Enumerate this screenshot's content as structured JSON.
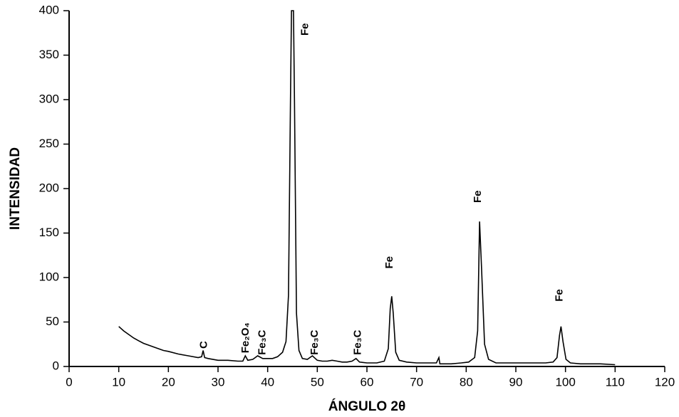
{
  "chart_data": {
    "type": "line",
    "xlabel": "ÁNGULO 2θ",
    "ylabel": "INTENSIDAD",
    "xlim": [
      0,
      120
    ],
    "ylim": [
      0,
      400
    ],
    "xticks": [
      0,
      10,
      20,
      30,
      40,
      50,
      60,
      70,
      80,
      90,
      100,
      110,
      120
    ],
    "yticks": [
      0,
      50,
      100,
      150,
      200,
      250,
      300,
      350,
      400
    ],
    "color": "#000000",
    "x": [
      10,
      11,
      12,
      13,
      14,
      15,
      16,
      17,
      18,
      19,
      20,
      22,
      24,
      26,
      26.7,
      27,
      27.3,
      28,
      30,
      32,
      34,
      35,
      35.5,
      36,
      37,
      38,
      39,
      40,
      41,
      42,
      43,
      43.7,
      44.2,
      44.6,
      44.8,
      45.2,
      45.4,
      45.8,
      46.3,
      47,
      48,
      49,
      50,
      51,
      52,
      53,
      54,
      55,
      56,
      57,
      57.8,
      58.5,
      60,
      62,
      63.5,
      64.3,
      64.7,
      65,
      65.3,
      65.8,
      66.5,
      68,
      70,
      72,
      74,
      74.5,
      74.7,
      75.2,
      77,
      79,
      80.5,
      81.7,
      82.3,
      82.7,
      83.1,
      83.7,
      84.5,
      86,
      88,
      90,
      92,
      94,
      96,
      97.5,
      98.3,
      98.8,
      99.1,
      99.5,
      100.1,
      101,
      103,
      105,
      107,
      110
    ],
    "values": [
      45,
      40,
      36,
      32,
      29,
      26,
      24,
      22,
      20,
      18,
      17,
      14,
      12,
      10,
      11,
      18,
      10,
      9,
      7,
      7,
      6,
      6,
      12,
      7,
      8,
      12,
      9,
      9,
      9,
      11,
      16,
      28,
      80,
      300,
      400,
      400,
      300,
      60,
      18,
      9,
      8,
      12,
      7,
      6,
      6,
      7,
      6,
      5,
      5,
      6,
      9,
      5,
      4,
      4,
      6,
      20,
      65,
      79,
      60,
      16,
      7,
      5,
      4,
      4,
      4,
      10,
      3,
      3,
      3,
      4,
      5,
      10,
      40,
      163,
      110,
      25,
      8,
      4,
      4,
      4,
      4,
      4,
      4,
      5,
      10,
      35,
      45,
      28,
      8,
      4,
      3,
      3,
      3,
      2
    ],
    "annotations": [
      {
        "text": "C",
        "x": 27.2,
        "y": 20
      },
      {
        "text": "Fe₂O₄",
        "x": 35.6,
        "y": 15
      },
      {
        "text": "Fe₃C",
        "x": 39,
        "y": 13
      },
      {
        "text": "Fe",
        "x": 47.6,
        "y": 372
      },
      {
        "text": "Fe₃C",
        "x": 49.5,
        "y": 13
      },
      {
        "text": "Fe₃C",
        "x": 58.2,
        "y": 13
      },
      {
        "text": "Fe",
        "x": 64.6,
        "y": 110
      },
      {
        "text": "Fe",
        "x": 82.4,
        "y": 184
      },
      {
        "text": "Fe",
        "x": 98.8,
        "y": 73
      }
    ]
  }
}
